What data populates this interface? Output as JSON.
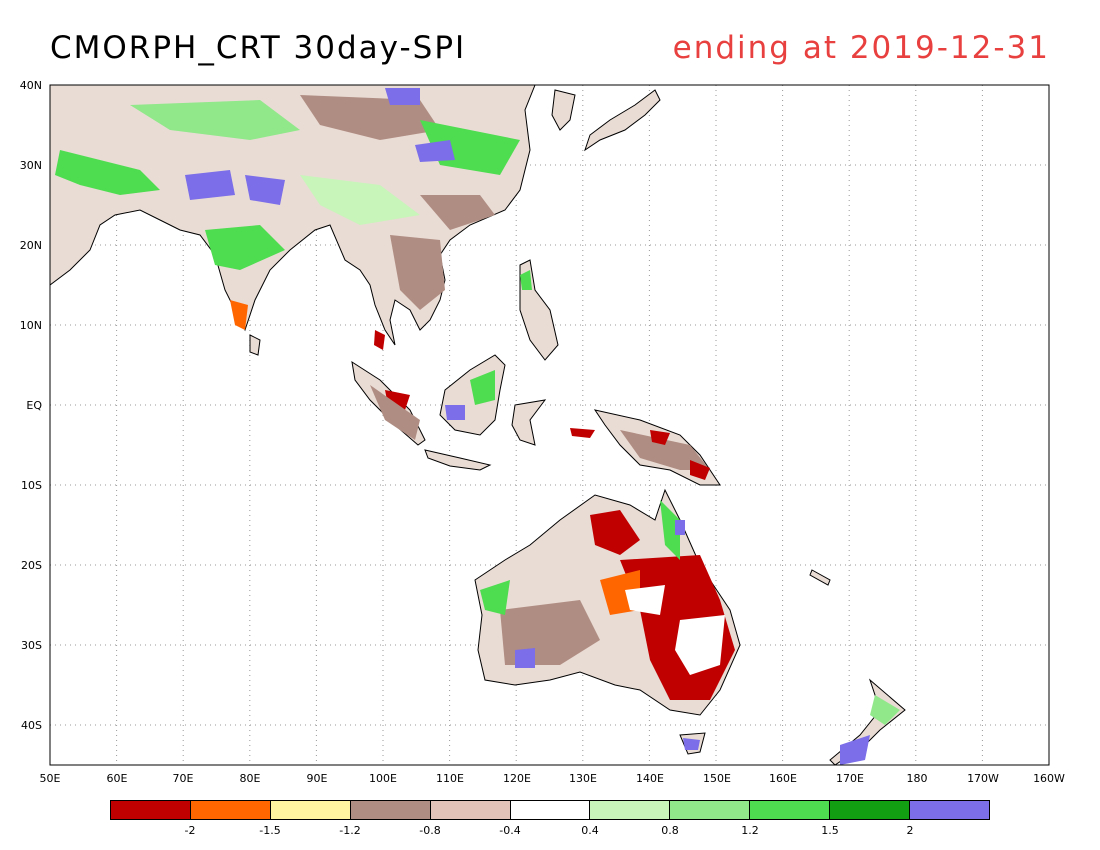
{
  "header": {
    "title": "CMORPH_CRT 30day-SPI",
    "subtitle": "ending at 2019-12-31"
  },
  "map": {
    "lat_labels": [
      "40N",
      "30N",
      "20N",
      "10N",
      "EQ",
      "10S",
      "20S",
      "30S",
      "40S"
    ],
    "lon_labels": [
      "50E",
      "60E",
      "70E",
      "80E",
      "90E",
      "100E",
      "110E",
      "120E",
      "130E",
      "140E",
      "150E",
      "160E",
      "170E",
      "180",
      "170W",
      "160W"
    ],
    "lon_range": [
      50,
      200
    ],
    "lat_range": [
      -45,
      40
    ],
    "grid": "dotted"
  },
  "colorbar": {
    "colors": [
      "#c00000",
      "#ff6600",
      "#fff5a0",
      "#b08d82",
      "#e3c2b8",
      "#ffffff",
      "#c8f5b9",
      "#90e88a",
      "#4edc50",
      "#12a012",
      "#7b6ee8"
    ],
    "labels": [
      "-2",
      "-1.5",
      "-1.2",
      "-0.8",
      "-0.4",
      "0.4",
      "0.8",
      "1.2",
      "1.5",
      "2"
    ]
  }
}
